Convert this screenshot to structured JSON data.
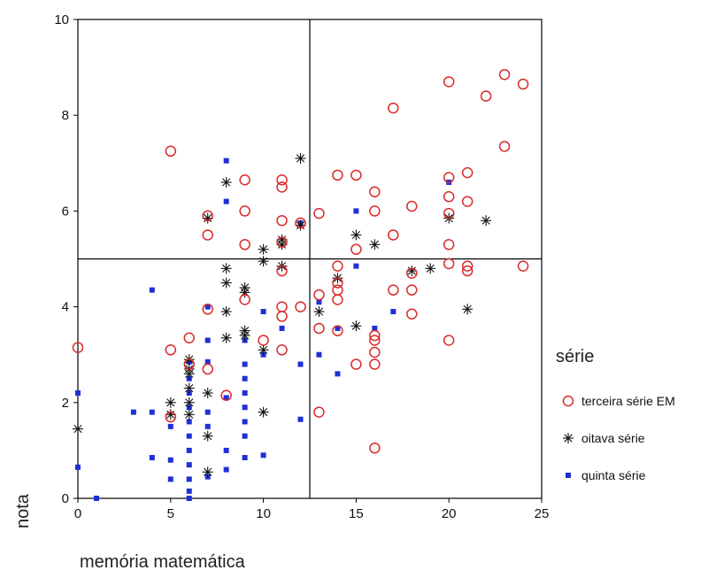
{
  "chart_data": {
    "type": "scatter",
    "title": "",
    "xlabel": "memória matemática",
    "ylabel": "nota",
    "xlim": [
      0,
      25
    ],
    "ylim": [
      0,
      10
    ],
    "xticks": [
      0,
      5,
      10,
      15,
      20,
      25
    ],
    "yticks": [
      0,
      2,
      4,
      6,
      8,
      10
    ],
    "reference_lines": {
      "x": 12.5,
      "y": 5
    },
    "grid": false,
    "legend": {
      "title": "série",
      "position": "right"
    },
    "series": [
      {
        "name": "terceira série EM",
        "marker": "open-circle",
        "color": "#d92b2b",
        "points": [
          [
            0,
            3.15
          ],
          [
            5,
            7.25
          ],
          [
            5,
            3.1
          ],
          [
            5,
            1.7
          ],
          [
            6,
            3.35
          ],
          [
            6,
            2.8
          ],
          [
            7,
            5.9
          ],
          [
            7,
            5.5
          ],
          [
            7,
            3.95
          ],
          [
            7,
            2.7
          ],
          [
            8,
            2.15
          ],
          [
            9,
            6.65
          ],
          [
            9,
            6.0
          ],
          [
            9,
            5.3
          ],
          [
            9,
            4.15
          ],
          [
            10,
            3.3
          ],
          [
            11,
            6.65
          ],
          [
            11,
            6.5
          ],
          [
            11,
            5.8
          ],
          [
            11,
            5.35
          ],
          [
            11,
            4.75
          ],
          [
            11,
            4.0
          ],
          [
            11,
            3.8
          ],
          [
            11,
            3.1
          ],
          [
            12,
            5.75
          ],
          [
            12,
            4.0
          ],
          [
            13,
            5.95
          ],
          [
            13,
            4.25
          ],
          [
            13,
            3.55
          ],
          [
            13,
            1.8
          ],
          [
            14,
            6.75
          ],
          [
            14,
            4.85
          ],
          [
            14,
            4.5
          ],
          [
            14,
            4.35
          ],
          [
            14,
            4.15
          ],
          [
            14,
            3.5
          ],
          [
            15,
            6.75
          ],
          [
            15,
            5.2
          ],
          [
            15,
            2.8
          ],
          [
            16,
            6.4
          ],
          [
            16,
            6.0
          ],
          [
            16,
            3.4
          ],
          [
            16,
            3.3
          ],
          [
            16,
            3.05
          ],
          [
            16,
            2.8
          ],
          [
            16,
            1.05
          ],
          [
            17,
            8.15
          ],
          [
            17,
            5.5
          ],
          [
            17,
            4.35
          ],
          [
            18,
            6.1
          ],
          [
            18,
            4.7
          ],
          [
            18,
            4.35
          ],
          [
            18,
            3.85
          ],
          [
            20,
            8.7
          ],
          [
            20,
            6.7
          ],
          [
            20,
            6.3
          ],
          [
            20,
            5.95
          ],
          [
            20,
            5.3
          ],
          [
            20,
            4.9
          ],
          [
            20,
            3.3
          ],
          [
            21,
            6.8
          ],
          [
            21,
            6.2
          ],
          [
            21,
            4.85
          ],
          [
            21,
            4.75
          ],
          [
            22,
            8.4
          ],
          [
            23,
            8.85
          ],
          [
            23,
            7.35
          ],
          [
            24,
            8.65
          ],
          [
            24,
            4.85
          ]
        ]
      },
      {
        "name": "oitava série",
        "marker": "asterisk",
        "color": "#111111",
        "points": [
          [
            0,
            1.45
          ],
          [
            5,
            2.0
          ],
          [
            5,
            1.75
          ],
          [
            6,
            2.9
          ],
          [
            6,
            2.7
          ],
          [
            6,
            2.6
          ],
          [
            6,
            2.3
          ],
          [
            6,
            2.0
          ],
          [
            6,
            1.75
          ],
          [
            7,
            5.85
          ],
          [
            7,
            2.2
          ],
          [
            7,
            1.3
          ],
          [
            7,
            0.55
          ],
          [
            8,
            6.6
          ],
          [
            8,
            4.8
          ],
          [
            8,
            4.5
          ],
          [
            8,
            3.9
          ],
          [
            8,
            3.35
          ],
          [
            9,
            4.4
          ],
          [
            9,
            4.3
          ],
          [
            9,
            3.5
          ],
          [
            9,
            3.4
          ],
          [
            10,
            5.2
          ],
          [
            10,
            4.95
          ],
          [
            10,
            3.1
          ],
          [
            10,
            1.8
          ],
          [
            11,
            5.4
          ],
          [
            11,
            5.3
          ],
          [
            11,
            4.85
          ],
          [
            12,
            7.1
          ],
          [
            12,
            5.7
          ],
          [
            13,
            3.9
          ],
          [
            14,
            4.6
          ],
          [
            15,
            5.5
          ],
          [
            15,
            3.6
          ],
          [
            16,
            5.3
          ],
          [
            18,
            4.75
          ],
          [
            19,
            4.8
          ],
          [
            20,
            5.85
          ],
          [
            21,
            3.95
          ],
          [
            22,
            5.8
          ]
        ]
      },
      {
        "name": "quinta série",
        "marker": "filled-square",
        "color": "#1f2fd6",
        "points": [
          [
            0,
            2.2
          ],
          [
            0,
            0.65
          ],
          [
            1,
            0
          ],
          [
            3,
            1.8
          ],
          [
            4,
            4.35
          ],
          [
            4,
            1.8
          ],
          [
            4,
            0.85
          ],
          [
            5,
            1.5
          ],
          [
            5,
            0.8
          ],
          [
            5,
            0.4
          ],
          [
            6,
            2.85
          ],
          [
            6,
            2.5
          ],
          [
            6,
            2.2
          ],
          [
            6,
            1.9
          ],
          [
            6,
            1.6
          ],
          [
            6,
            1.3
          ],
          [
            6,
            1.0
          ],
          [
            6,
            0.7
          ],
          [
            6,
            0.4
          ],
          [
            6,
            0.15
          ],
          [
            6,
            0
          ],
          [
            7,
            4.0
          ],
          [
            7,
            3.3
          ],
          [
            7,
            2.85
          ],
          [
            7,
            1.8
          ],
          [
            7,
            1.5
          ],
          [
            7,
            0.45
          ],
          [
            8,
            7.05
          ],
          [
            8,
            6.2
          ],
          [
            8,
            2.1
          ],
          [
            8,
            1.0
          ],
          [
            8,
            0.6
          ],
          [
            9,
            3.3
          ],
          [
            9,
            2.8
          ],
          [
            9,
            2.5
          ],
          [
            9,
            2.2
          ],
          [
            9,
            1.9
          ],
          [
            9,
            1.6
          ],
          [
            9,
            1.3
          ],
          [
            9,
            0.85
          ],
          [
            10,
            3.9
          ],
          [
            10,
            3.0
          ],
          [
            10,
            0.9
          ],
          [
            11,
            3.55
          ],
          [
            12,
            5.75
          ],
          [
            12,
            2.8
          ],
          [
            12,
            1.65
          ],
          [
            13,
            4.1
          ],
          [
            13,
            3.0
          ],
          [
            14,
            3.55
          ],
          [
            14,
            2.6
          ],
          [
            15,
            6.0
          ],
          [
            15,
            4.85
          ],
          [
            16,
            3.55
          ],
          [
            17,
            3.9
          ],
          [
            20,
            6.6
          ]
        ]
      }
    ]
  }
}
